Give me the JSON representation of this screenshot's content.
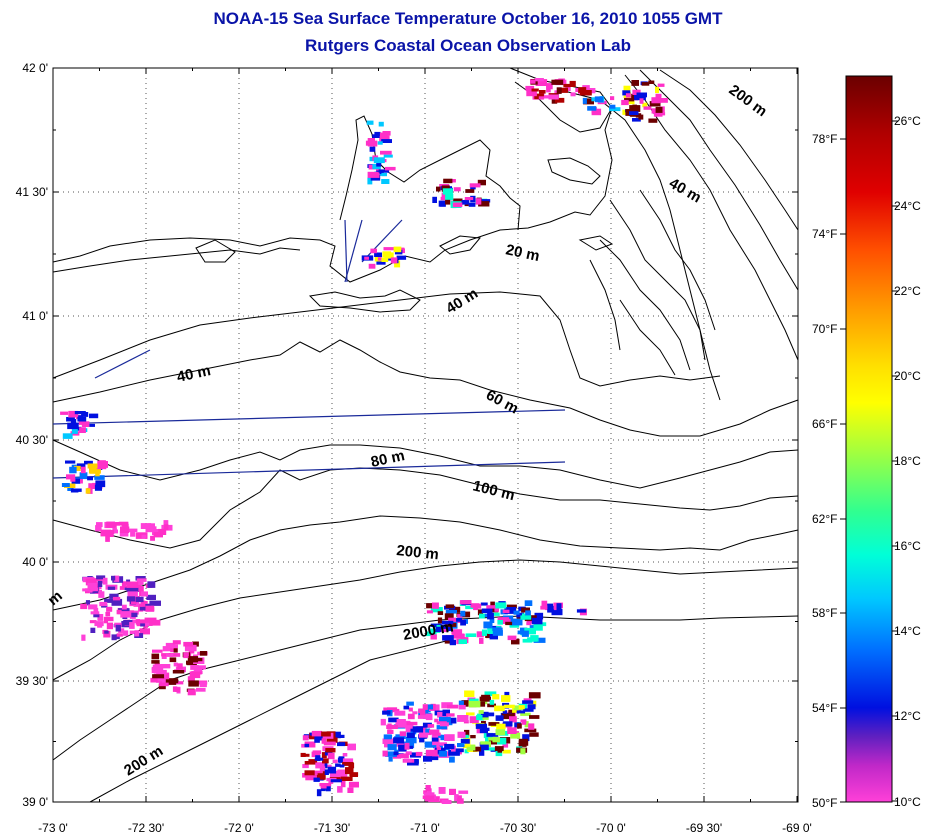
{
  "title": "NOAA-15 Sea Surface Temperature October 16, 2010 1055 GMT",
  "subtitle": "Rutgers Coastal Ocean Observation Lab",
  "lat_ticks": [
    "42 0'",
    "41 30'",
    "41 0'",
    "40 30'",
    "40 0'",
    "39 30'",
    "39 0'"
  ],
  "lon_ticks": [
    "-73 0'",
    "-72 30'",
    "-72 0'",
    "-71 30'",
    "-71 0'",
    "-70 30'",
    "-70 0'",
    "-69 30'",
    "-69 0'"
  ],
  "colorbar": {
    "celsius": [
      "26°C",
      "24°C",
      "22°C",
      "20°C",
      "18°C",
      "16°C",
      "14°C",
      "12°C",
      "10°C"
    ],
    "fahrenheit": [
      "78°F",
      "74°F",
      "70°F",
      "66°F",
      "62°F",
      "58°F",
      "54°F",
      "50°F"
    ],
    "colors": [
      "#6b0000",
      "#b00000",
      "#e00000",
      "#ff4000",
      "#ff8c00",
      "#ffd000",
      "#ffff00",
      "#a0ff40",
      "#40ff80",
      "#00ffd0",
      "#00c8ff",
      "#0070ff",
      "#0010e0",
      "#5020c0",
      "#a020c0",
      "#ff30c8",
      "#ff40d8"
    ]
  },
  "depth_labels": [
    "200 m",
    "40 m",
    "20 m",
    "40 m",
    "40 m",
    "60 m",
    "80 m",
    "100 m",
    "200 m",
    "2000 m",
    "200 m",
    "m"
  ],
  "colors": {
    "title": "#0a14a8",
    "contour": "#000000",
    "track": "#1a2a9a",
    "grid": "#444444"
  }
}
